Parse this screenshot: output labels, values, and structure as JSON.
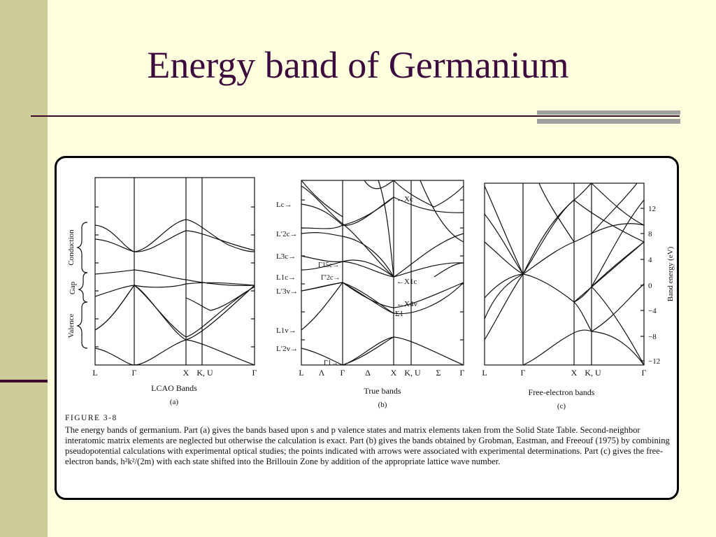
{
  "slide": {
    "title": "Energy band of Germanium"
  },
  "figure": {
    "panel_a": {
      "title": "LCAO Bands",
      "letter": "(a)",
      "x_ticks": [
        "L",
        "Γ",
        "X",
        "K, U",
        "Γ"
      ],
      "side_labels": [
        "Conduction",
        "Gap",
        "Valence"
      ]
    },
    "panel_b": {
      "title": "True bands",
      "letter": "(b)",
      "x_ticks": [
        "L",
        "Λ",
        "Γ",
        "Δ",
        "X",
        "K, U",
        "Σ",
        "Γ"
      ],
      "left_labels": [
        "Lc→",
        "L′2c→",
        "L3c→",
        "L1c→",
        "L′3v→",
        "L1v→",
        "L′2v→"
      ],
      "inner_labels": [
        "Γ15c→",
        "Γ′2c→",
        "Γ1→",
        "←Xc",
        "←X1c",
        "←X4v",
        "Σ1"
      ]
    },
    "panel_c": {
      "title": "Free-electron bands",
      "letter": "(c)",
      "x_ticks": [
        "L",
        "Γ",
        "X",
        "K, U",
        "Γ"
      ],
      "y_ticks": [
        "12",
        "8",
        "4",
        "0",
        "−4",
        "−8",
        "−12"
      ],
      "y_label": "Band energy (eV)"
    },
    "caption": {
      "label": "FIGURE 3-8",
      "text": "The energy bands of germanium. Part (a) gives the bands based upon s and p valence states and matrix elements taken from the Solid State Table. Second-neighbor interatomic matrix elements are neglected but otherwise the calculation is exact. Part (b) gives the bands obtained by Grobman, Eastman, and Freeouf (1975) by combining pseudopotential calculations with experimental optical studies; the points indicated with arrows were associated with experimental determinations. Part (c) gives the free-electron bands, h²k²/(2m) with each state shifted into the Brillouin Zone by addition of the appropriate lattice wave number."
    }
  }
}
